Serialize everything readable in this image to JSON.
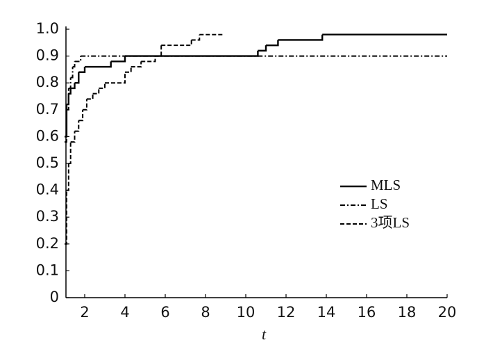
{
  "chart_data": {
    "type": "step",
    "x_label": "t",
    "xlim": [
      1,
      20
    ],
    "xticks": [
      2,
      4,
      6,
      8,
      10,
      12,
      14,
      16,
      18,
      20
    ],
    "ylim": [
      0,
      1
    ],
    "yticks": [
      0,
      0.1,
      0.2,
      0.3,
      0.4,
      0.5,
      0.6,
      0.7,
      0.8,
      0.9,
      {
        "value": 1,
        "label": "1.0"
      }
    ],
    "legend_position": "center right",
    "series": [
      {
        "name": "MLS",
        "color": "#000000",
        "linestyle": "solid",
        "x": [
          1,
          1.1,
          1.2,
          1.3,
          1.5,
          1.7,
          2.0,
          3.3,
          4.0,
          10.6,
          11.0,
          11.6,
          13.8,
          20
        ],
        "values": [
          0.6,
          0.72,
          0.76,
          0.78,
          0.8,
          0.84,
          0.86,
          0.88,
          0.9,
          0.92,
          0.94,
          0.96,
          0.98,
          0.98
        ]
      },
      {
        "name": "LS",
        "color": "#000000",
        "linestyle": "dashdot",
        "x": [
          1,
          1.1,
          1.2,
          1.3,
          1.4,
          1.5,
          1.8,
          20
        ],
        "values": [
          0.58,
          0.7,
          0.78,
          0.82,
          0.86,
          0.88,
          0.9,
          0.9
        ]
      },
      {
        "name": "3项LS",
        "color": "#000000",
        "linestyle": "dashed",
        "x": [
          1,
          1.1,
          1.2,
          1.3,
          1.5,
          1.7,
          1.9,
          2.1,
          2.4,
          2.7,
          3.0,
          4.0,
          4.3,
          4.8,
          5.5,
          5.8,
          7.3,
          7.7,
          8.9
        ],
        "values": [
          0.2,
          0.4,
          0.5,
          0.58,
          0.62,
          0.66,
          0.7,
          0.74,
          0.76,
          0.78,
          0.8,
          0.84,
          0.86,
          0.88,
          0.9,
          0.94,
          0.96,
          0.98,
          0.98
        ]
      }
    ]
  }
}
